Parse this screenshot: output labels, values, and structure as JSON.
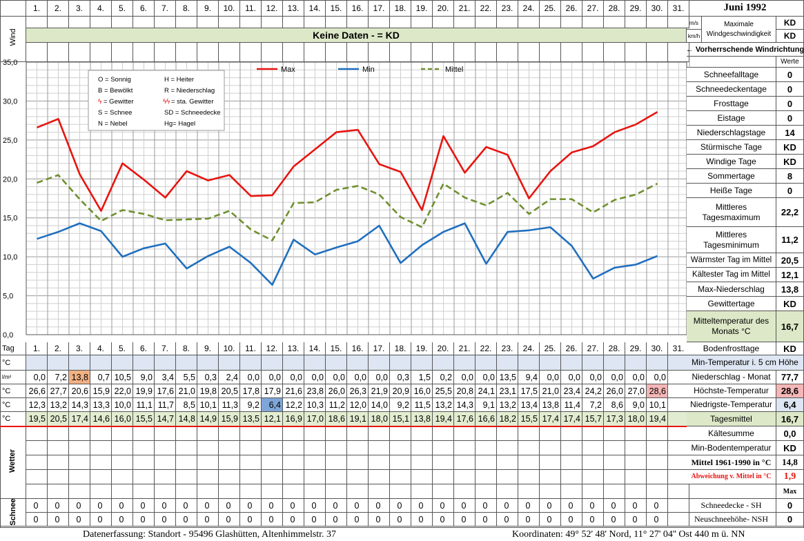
{
  "header": {
    "title": "Juni 1992",
    "days": [
      "1.",
      "2.",
      "3.",
      "4.",
      "5.",
      "6.",
      "7.",
      "8.",
      "9.",
      "10.",
      "11.",
      "12.",
      "13.",
      "14.",
      "15.",
      "16.",
      "17.",
      "18.",
      "19.",
      "20.",
      "21.",
      "22.",
      "23.",
      "24.",
      "25.",
      "26.",
      "27.",
      "28.",
      "29.",
      "30.",
      "31."
    ],
    "wind_label": "Wind",
    "wind_banner": "Keine Daten -  = KD",
    "unit_ms": "m/s",
    "unit_kmh": "km/h",
    "max_wind_label": "Maximale Windgeschwindigkeit",
    "max_wind_ms": "KD",
    "max_wind_kmh": "KD",
    "wind_direction_label": "← Vorherrschende Windrichtung",
    "werte_label": "Werte"
  },
  "chart_data": {
    "type": "line",
    "x": [
      1,
      2,
      3,
      4,
      5,
      6,
      7,
      8,
      9,
      10,
      11,
      12,
      13,
      14,
      15,
      16,
      17,
      18,
      19,
      20,
      21,
      22,
      23,
      24,
      25,
      26,
      27,
      28,
      29,
      30
    ],
    "ylim": [
      0,
      35
    ],
    "yticks": [
      "0,0",
      "5,0",
      "10,0",
      "15,0",
      "20,0",
      "25,0",
      "30,0",
      "35,0"
    ],
    "grid": true,
    "legend_position": "top",
    "series": [
      {
        "name": "Max",
        "color": "#e8140f",
        "style": "solid",
        "values": [
          26.6,
          27.7,
          20.6,
          15.9,
          22.0,
          19.9,
          17.6,
          21.0,
          19.8,
          20.5,
          17.8,
          17.9,
          21.6,
          23.8,
          26.0,
          26.3,
          21.9,
          20.9,
          16.0,
          25.5,
          20.8,
          24.1,
          23.1,
          17.5,
          21.0,
          23.4,
          24.2,
          26.0,
          27.0,
          28.6
        ]
      },
      {
        "name": "Min",
        "color": "#1f6fbf",
        "style": "solid",
        "values": [
          12.3,
          13.2,
          14.3,
          13.3,
          10.0,
          11.1,
          11.7,
          8.5,
          10.1,
          11.3,
          9.2,
          6.4,
          12.2,
          10.3,
          11.2,
          12.0,
          14.0,
          9.2,
          11.5,
          13.2,
          14.3,
          9.1,
          13.2,
          13.4,
          13.8,
          11.4,
          7.2,
          8.6,
          9.0,
          10.1
        ]
      },
      {
        "name": "Mittel",
        "color": "#6f8f2e",
        "style": "dashed",
        "values": [
          19.5,
          20.5,
          17.4,
          14.6,
          16.0,
          15.5,
          14.7,
          14.8,
          14.9,
          15.9,
          13.5,
          12.1,
          16.9,
          17.0,
          18.6,
          19.1,
          18.0,
          15.1,
          13.8,
          19.4,
          17.6,
          16.6,
          18.2,
          15.5,
          17.4,
          17.4,
          15.7,
          17.3,
          18.0,
          19.4
        ]
      }
    ],
    "legend_box": [
      [
        "O = Sonnig",
        "H = Heiter"
      ],
      [
        "B = Bewölkt",
        "R = Niederschlag"
      ],
      [
        "= Gewitter",
        "= sta. Gewitter"
      ],
      [
        "S = Schnee",
        "SD = Schneedecke"
      ],
      [
        "N = Nebel",
        "Hg= Hagel"
      ]
    ]
  },
  "table": {
    "tag_label": "Tag",
    "unit_c": "°C",
    "unit_lm2": "l/m²",
    "wetter_label": "Wetter",
    "schnee_label": "Schnee",
    "precip": [
      "0,0",
      "7,2",
      "13,8",
      "0,7",
      "10,5",
      "9,0",
      "3,4",
      "5,5",
      "0,3",
      "2,4",
      "0,0",
      "0,0",
      "0,0",
      "0,0",
      "0,0",
      "0,0",
      "0,0",
      "0,3",
      "1,5",
      "0,2",
      "0,0",
      "0,0",
      "13,5",
      "9,4",
      "0,0",
      "0,0",
      "0,0",
      "0,0",
      "0,0",
      "0,0"
    ],
    "max": [
      "26,6",
      "27,7",
      "20,6",
      "15,9",
      "22,0",
      "19,9",
      "17,6",
      "21,0",
      "19,8",
      "20,5",
      "17,8",
      "17,9",
      "21,6",
      "23,8",
      "26,0",
      "26,3",
      "21,9",
      "20,9",
      "16,0",
      "25,5",
      "20,8",
      "24,1",
      "23,1",
      "17,5",
      "21,0",
      "23,4",
      "24,2",
      "26,0",
      "27,0",
      "28,6"
    ],
    "min": [
      "12,3",
      "13,2",
      "14,3",
      "13,3",
      "10,0",
      "11,1",
      "11,7",
      "8,5",
      "10,1",
      "11,3",
      "9,2",
      "6,4",
      "12,2",
      "10,3",
      "11,2",
      "12,0",
      "14,0",
      "9,2",
      "11,5",
      "13,2",
      "14,3",
      "9,1",
      "13,2",
      "13,4",
      "13,8",
      "11,4",
      "7,2",
      "8,6",
      "9,0",
      "10,1"
    ],
    "mean": [
      "19,5",
      "20,5",
      "17,4",
      "14,6",
      "16,0",
      "15,5",
      "14,7",
      "14,8",
      "14,9",
      "15,9",
      "13,5",
      "12,1",
      "16,9",
      "17,0",
      "18,6",
      "19,1",
      "18,0",
      "15,1",
      "13,8",
      "19,4",
      "17,6",
      "16,6",
      "18,2",
      "15,5",
      "17,4",
      "17,4",
      "15,7",
      "17,3",
      "18,0",
      "19,4"
    ],
    "snow_sh": [
      "0",
      "0",
      "0",
      "0",
      "0",
      "0",
      "0",
      "0",
      "0",
      "0",
      "0",
      "0",
      "0",
      "0",
      "0",
      "0",
      "0",
      "0",
      "0",
      "0",
      "0",
      "0",
      "0",
      "0",
      "0",
      "0",
      "0",
      "0",
      "0",
      "0"
    ],
    "snow_nsh": [
      "0",
      "0",
      "0",
      "0",
      "0",
      "0",
      "0",
      "0",
      "0",
      "0",
      "0",
      "0",
      "0",
      "0",
      "0",
      "0",
      "0",
      "0",
      "0",
      "0",
      "0",
      "0",
      "0",
      "0",
      "0",
      "0",
      "0",
      "0",
      "0",
      "0"
    ],
    "highlight_colors": {
      "precip_max": "#f2b183",
      "temp_max": "#f4b6b6",
      "temp_min": "#7fa6d9",
      "mean_row": "#e2ecd0",
      "banner": "#dde8c8"
    }
  },
  "stats": [
    {
      "label": "Schneefalltage",
      "value": "0"
    },
    {
      "label": "Schneedeckentage",
      "value": "0"
    },
    {
      "label": "Frosttage",
      "value": "0"
    },
    {
      "label": "Eistage",
      "value": "0"
    },
    {
      "label": "Niederschlagstage",
      "value": "14"
    },
    {
      "label": "Stürmische Tage",
      "value": "KD"
    },
    {
      "label": "Windige Tage",
      "value": "KD"
    },
    {
      "label": "Sommertage",
      "value": "8"
    },
    {
      "label": "Heiße Tage",
      "value": "0"
    },
    {
      "label": "Mittleres Tagesmaximum",
      "value": "22,2"
    },
    {
      "label": "Mittleres Tagesminimum",
      "value": "11,2"
    },
    {
      "label": "Wärmster Tag im Mittel",
      "value": "20,5"
    },
    {
      "label": "Kältester Tag im Mittel",
      "value": "12,1"
    },
    {
      "label": "Max-Niederschlag",
      "value": "13,8"
    },
    {
      "label": "Gewittertage",
      "value": "KD"
    },
    {
      "label": "Mitteltemperatur des Monats °C",
      "value": "16,7"
    }
  ],
  "stats_lower": {
    "bodenfrost": {
      "label": "Bodenfrosttage",
      "value": "KD"
    },
    "min5cm": {
      "label": "Min-Temperatur i. 5 cm Höhe"
    },
    "niederschlag": {
      "label": "Niederschlag - Monat",
      "value": "77,7"
    },
    "hoechste": {
      "label": "Höchste-Temperatur",
      "value": "28,6"
    },
    "niedrigste": {
      "label": "Niedrigste-Temperatur",
      "value": "6,4"
    },
    "tagesmittel": {
      "label": "Tagesmittel",
      "value": "16,7"
    },
    "kaeltesumme": {
      "label": "Kältesumme",
      "value": "0,0"
    },
    "minboden": {
      "label": "Min-Bodentemperatur",
      "value": "KD"
    },
    "mittel6190": {
      "label": "Mittel 1961-1990 in °C",
      "value": "14,8"
    },
    "abweichung": {
      "label": "Abweichung v. Mittel in °C",
      "value": "1,9"
    },
    "max_label": "Max",
    "schneedecke": {
      "label": "Schneedecke -  SH",
      "value": "0"
    },
    "neuschnee": {
      "label": "Neuschneehöhe- NSH",
      "value": "0"
    }
  },
  "footer": {
    "left": "Datenerfassung:  Standort -  95496  Glashütten, Altenhimmelstr. 37",
    "right": "Koordinaten:  49° 52' 48' Nord,  11° 27' 04'' Ost   440 m ü. NN"
  }
}
